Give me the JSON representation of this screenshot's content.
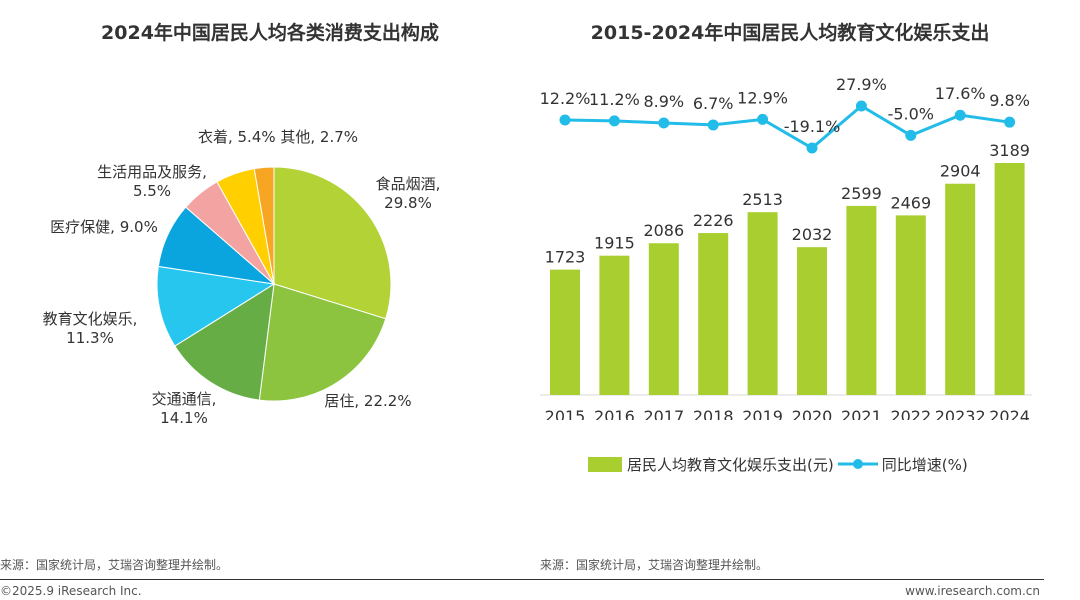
{
  "colors": {
    "bar": "#a8cf2f",
    "line": "#22bce8",
    "text": "#333333",
    "axis": "#d9d9d9"
  },
  "chart_data": [
    {
      "type": "pie",
      "title": "2024年中国居民人均各类消费支出构成",
      "slices": [
        {
          "name": "食品烟酒",
          "value": 29.8,
          "pct_label": "29.8%",
          "color": "#b2d235"
        },
        {
          "name": "居住",
          "value": 22.2,
          "pct_label": "22.2%",
          "color": "#8cc43f"
        },
        {
          "name": "交通通信",
          "value": 14.1,
          "pct_label": "14.1%",
          "color": "#66ad45"
        },
        {
          "name": "教育文化娱乐",
          "value": 11.3,
          "pct_label": "11.3%",
          "color": "#26c6ef"
        },
        {
          "name": "医疗保健",
          "value": 9.0,
          "pct_label": "9.0%",
          "color": "#0aa4de"
        },
        {
          "name": "生活用品及服务",
          "value": 5.5,
          "pct_label": "5.5%",
          "color": "#f4a3a3"
        },
        {
          "name": "衣着",
          "value": 5.4,
          "pct_label": "5.4%",
          "color": "#ffcf00"
        },
        {
          "name": "其他",
          "value": 2.7,
          "pct_label": "2.7%",
          "color": "#f6a623"
        }
      ],
      "slice_labels": [
        {
          "line1": "食品烟酒,",
          "line2": "29.8%"
        },
        {
          "line1": "居住, 22.2%",
          "line2": ""
        },
        {
          "line1": "交通通信,",
          "line2": "14.1%"
        },
        {
          "line1": "教育文化娱乐,",
          "line2": "11.3%"
        },
        {
          "line1": "医疗保健, 9.0%",
          "line2": ""
        },
        {
          "line1": "生活用品及服务,",
          "line2": "5.5%"
        },
        {
          "line1": "衣着, 5.4% 其他, 2.7%",
          "line2": ""
        }
      ],
      "source": "来源：国家统计局，艾瑞咨询整理并绘制。"
    },
    {
      "type": "bar+line",
      "title": "2015-2024年中国居民人均教育文化娱乐支出",
      "categories": [
        "2015",
        "2016",
        "2017",
        "2018",
        "2019",
        "2020",
        "2021",
        "2022",
        "20232",
        "2024"
      ],
      "series": [
        {
          "name": "居民人均教育文化娱乐支出(元)",
          "type": "bar",
          "values": [
            1723,
            1915,
            2086,
            2226,
            2513,
            2032,
            2599,
            2469,
            2904,
            3189
          ]
        },
        {
          "name": "同比增速(%)",
          "type": "line",
          "values": [
            12.2,
            11.2,
            8.9,
            6.7,
            12.9,
            -19.1,
            27.9,
            -5.0,
            17.6,
            9.8
          ],
          "labels": [
            "12.2%",
            "11.2%",
            "8.9%",
            "6.7%",
            "12.9%",
            "-19.1%",
            "27.9%",
            "-5.0%",
            "17.6%",
            "9.8%"
          ]
        }
      ],
      "bar_ylim": [
        0,
        3189
      ],
      "line_ylim": [
        -19.1,
        27.9
      ],
      "source": "来源：国家统计局，艾瑞咨询整理并绘制。"
    }
  ],
  "footer": {
    "copyright": "©2025.9 iResearch Inc.",
    "website": "www.iresearch.com.cn"
  }
}
